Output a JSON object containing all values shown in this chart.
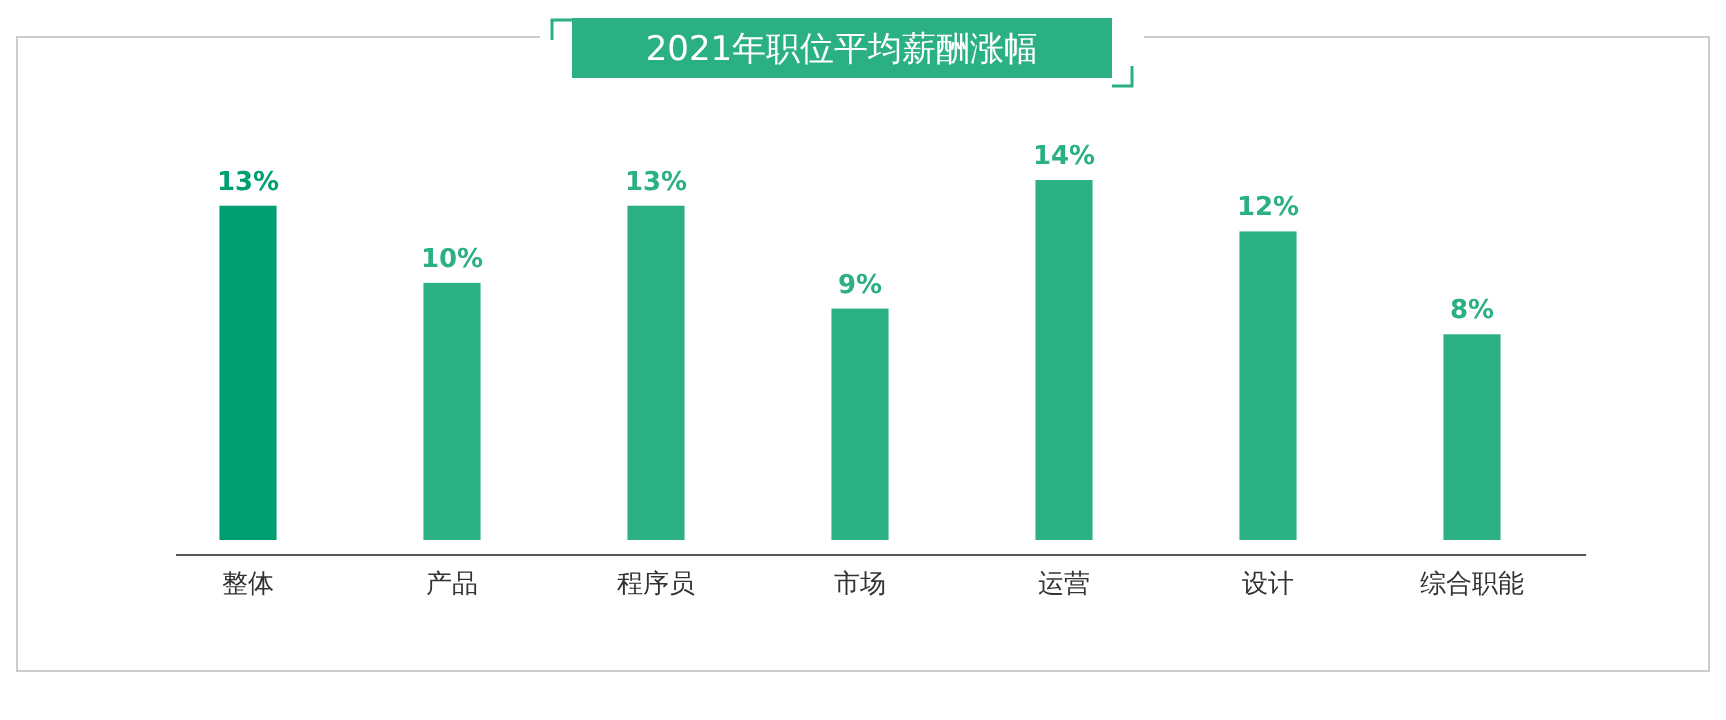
{
  "chart_data": {
    "type": "bar",
    "title": "2021年职位平均薪酬涨幅",
    "categories": [
      "整体",
      "产品",
      "程序员",
      "市场",
      "运营",
      "设计",
      "综合职能"
    ],
    "values": [
      13,
      10,
      13,
      9,
      14,
      12,
      8
    ],
    "colors": [
      "#009e73",
      "#2bb083",
      "#2bb083",
      "#2bb083",
      "#2bb083",
      "#2bb083",
      "#2bb083"
    ],
    "value_labels": [
      "13%",
      "10%",
      "13%",
      "9%",
      "14%",
      "12%",
      "8%"
    ]
  }
}
